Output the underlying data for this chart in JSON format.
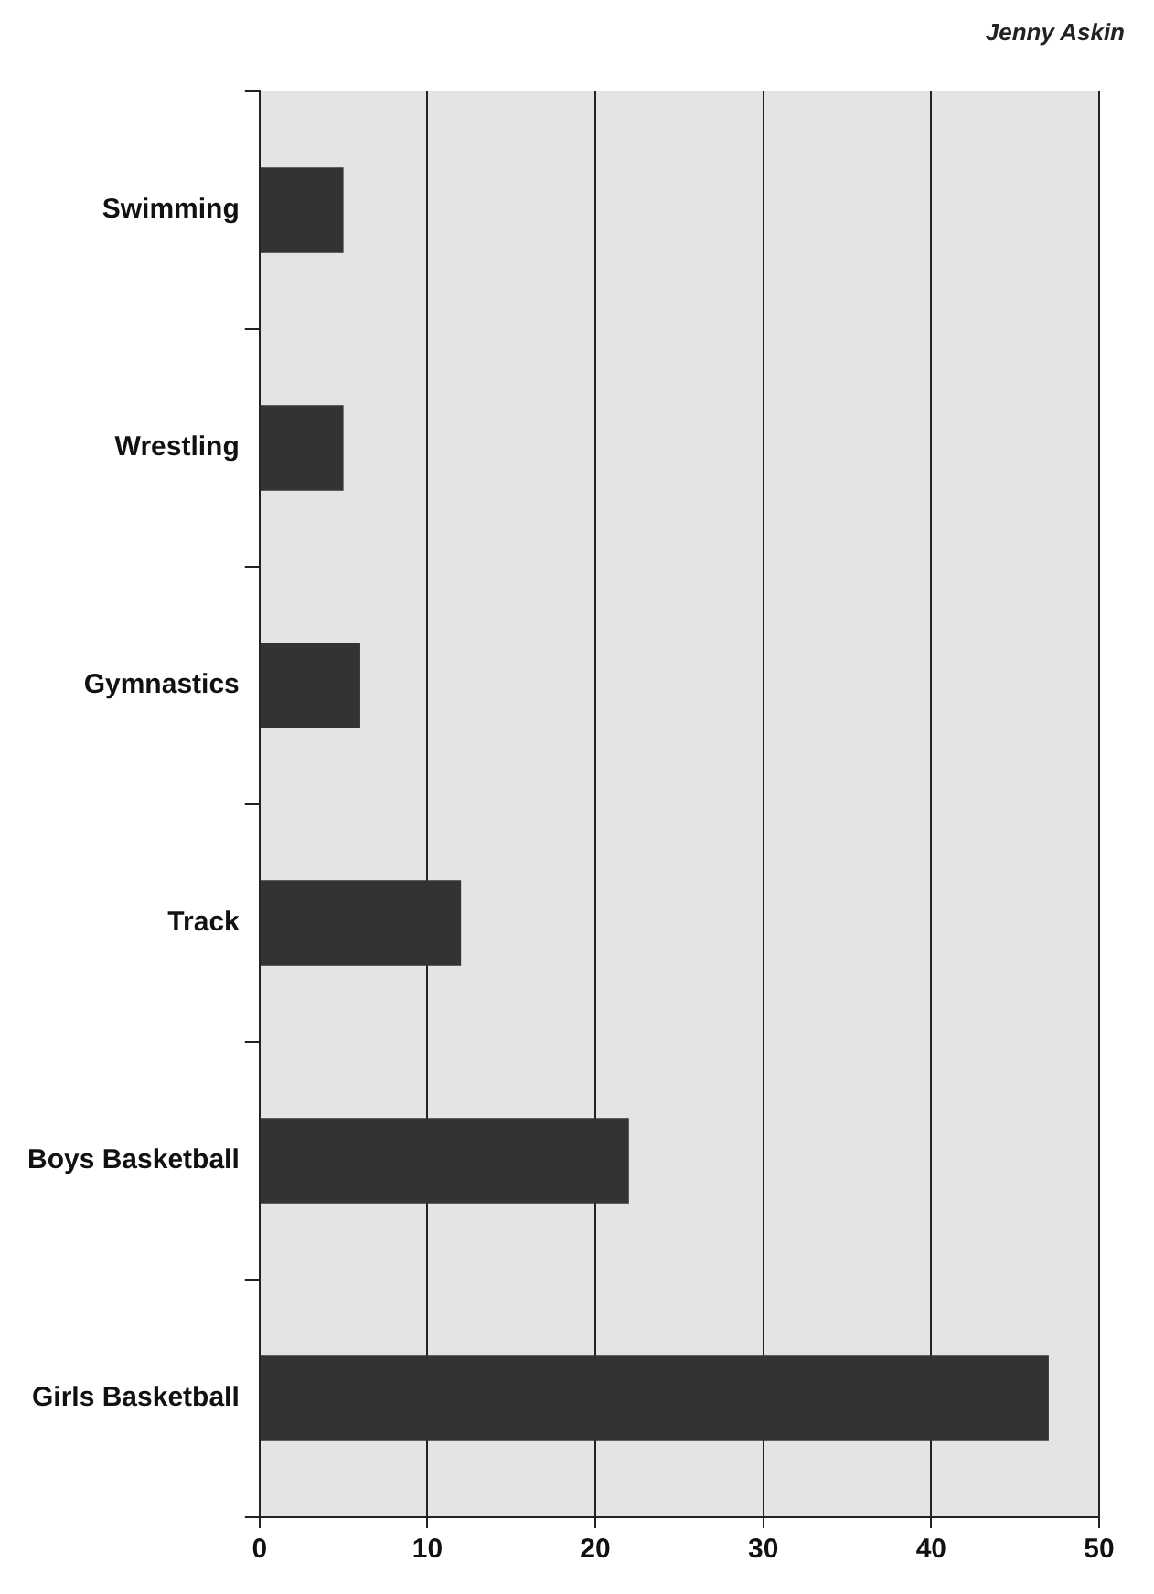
{
  "chart_data": {
    "type": "bar",
    "orientation": "horizontal",
    "categories": [
      "Swimming",
      "Wrestling",
      "Gymnastics",
      "Track",
      "Boys Basketball",
      "Girls Basketball"
    ],
    "values": [
      5,
      5,
      6,
      12,
      22,
      47
    ],
    "color": "#333333",
    "xlim": [
      0,
      50
    ],
    "xticks": [
      0,
      10,
      20,
      30,
      40,
      50
    ],
    "grid": "x",
    "legend": false,
    "annotations": [
      "Jenny Askin"
    ]
  }
}
